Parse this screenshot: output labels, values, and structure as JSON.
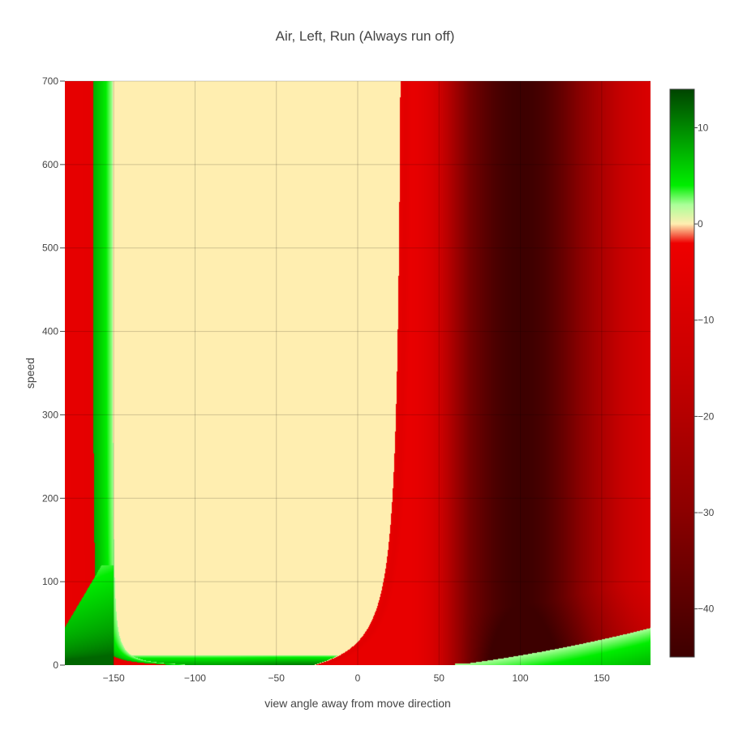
{
  "chart_data": {
    "type": "heatmap",
    "title": "Air, Left, Run (Always run off)",
    "xlabel": "view angle away from move direction",
    "ylabel": "speed",
    "xlim": [
      -180,
      180
    ],
    "ylim": [
      0,
      700
    ],
    "xticks": [
      -150,
      -100,
      -50,
      0,
      50,
      100,
      150
    ],
    "xtick_labels": [
      "−150",
      "−100",
      "−50",
      "0",
      "50",
      "100",
      "150"
    ],
    "yticks": [
      0,
      100,
      200,
      300,
      400,
      500,
      600,
      700
    ],
    "ytick_labels": [
      "0",
      "100",
      "200",
      "300",
      "400",
      "500",
      "600",
      "700"
    ],
    "colorbar": {
      "zmin": -45,
      "zmax": 14,
      "ticks": [
        10,
        0,
        -10,
        -20,
        -30,
        -40
      ],
      "tick_labels": [
        "10",
        "0",
        "−10",
        "−20",
        "−30",
        "−40"
      ],
      "colorscale": [
        [
          -45,
          "#3d0000"
        ],
        [
          -30,
          "#8b0000"
        ],
        [
          -15,
          "#c80000"
        ],
        [
          -2,
          "#ee0000"
        ],
        [
          0,
          "#ffeeb0"
        ],
        [
          2,
          "#aaff99"
        ],
        [
          4,
          "#00ee00"
        ],
        [
          14,
          "#004400"
        ]
      ]
    },
    "regions": {
      "zero_band_x": [
        -150,
        28
      ],
      "min_value_near_x": 100,
      "min_value": -44
    }
  }
}
